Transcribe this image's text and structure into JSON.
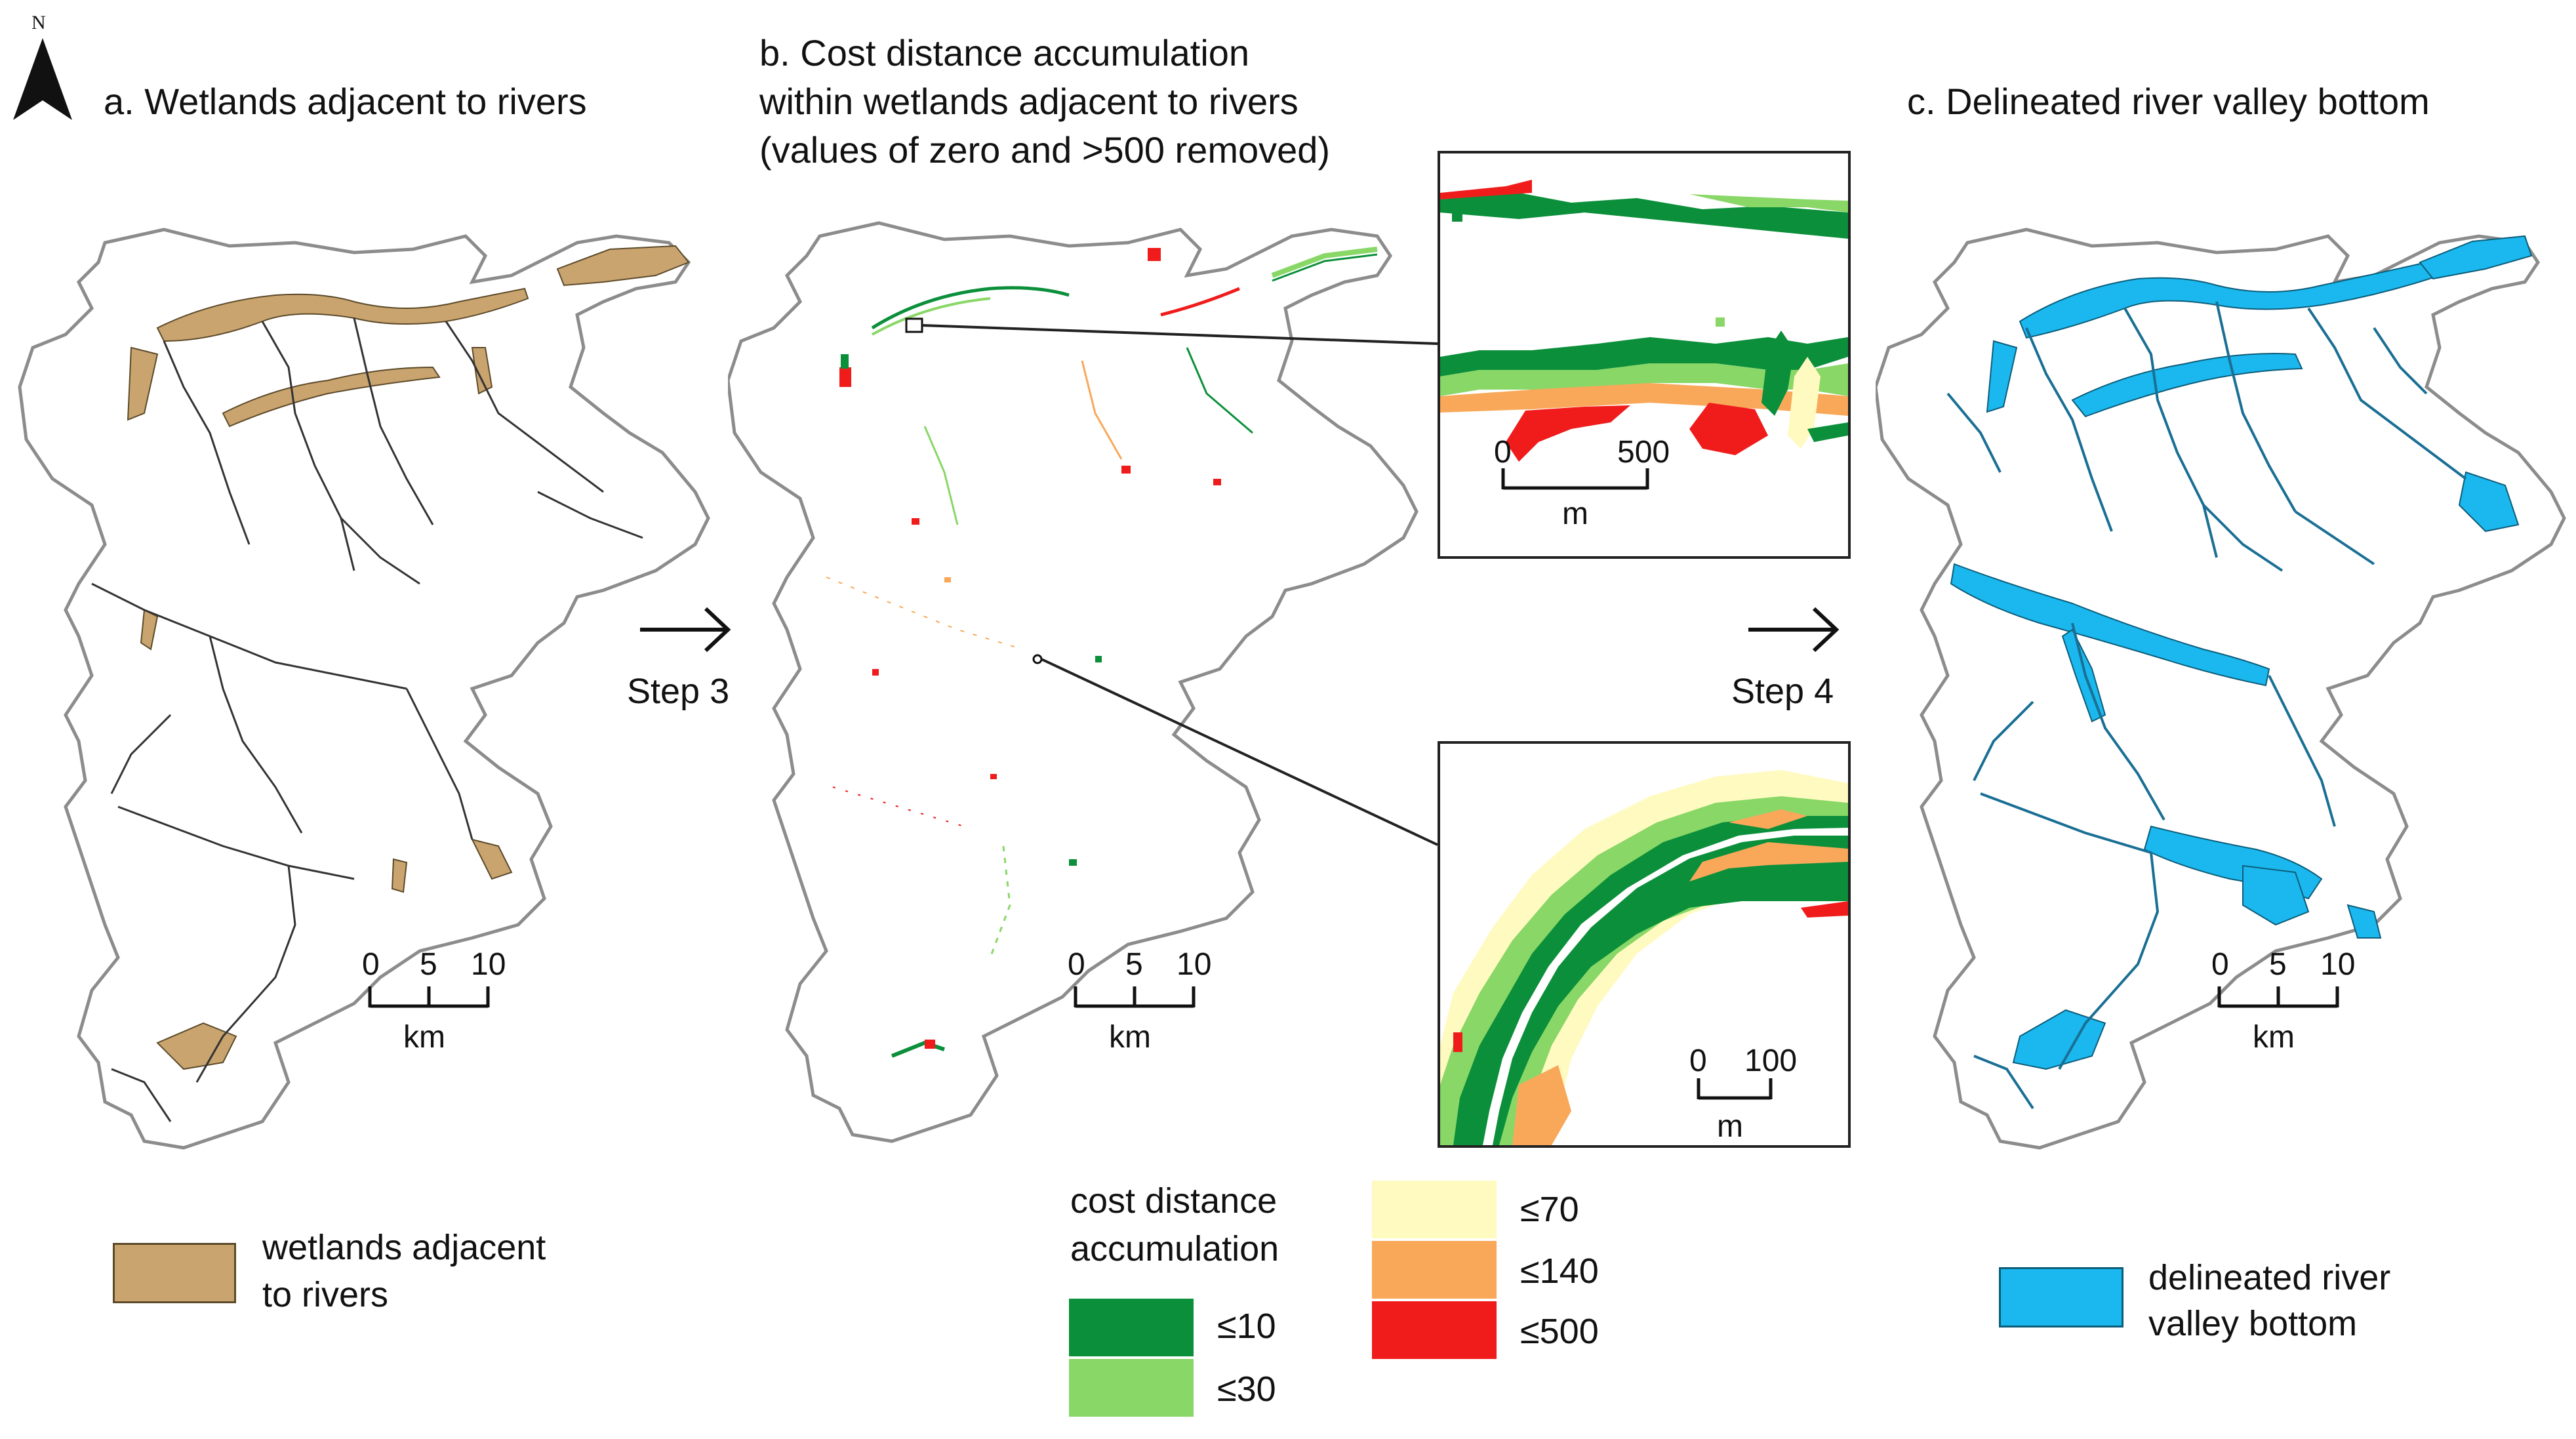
{
  "panels": {
    "a": {
      "title": "a. Wetlands adjacent to rivers",
      "legend": {
        "label_line1": "wetlands adjacent",
        "label_line2": "to rivers",
        "color": "#c9a46f"
      }
    },
    "b": {
      "title_line1": "b. Cost distance accumulation",
      "title_line2": "within wetlands adjacent to rivers",
      "title_line3": "(values of zero and >500 removed)"
    },
    "c": {
      "title": "c. Delineated river valley bottom",
      "legend": {
        "label_line1": "delineated river",
        "label_line2": "valley bottom",
        "color": "#1ab8ee"
      }
    }
  },
  "north_arrow": {
    "letter": "N"
  },
  "steps": {
    "step3": "Step 3",
    "step4": "Step 4",
    "arrow_glyph": "→"
  },
  "scalebars": {
    "main": {
      "ticks": [
        "0",
        "5",
        "10"
      ],
      "unit": "km"
    },
    "inset_top": {
      "ticks": [
        "0",
        "500"
      ],
      "unit": "m"
    },
    "inset_bottom": {
      "ticks": [
        "0",
        "100"
      ],
      "unit": "m"
    }
  },
  "cost_legend": {
    "title_line1": "cost distance",
    "title_line2": "accumulation",
    "classes": [
      {
        "label": "≤10",
        "color": "#0b8f3a"
      },
      {
        "label": "≤30",
        "color": "#88d767"
      },
      {
        "label": "≤70",
        "color": "#fffac0"
      },
      {
        "label": "≤140",
        "color": "#f9a85a"
      },
      {
        "label": "≤500",
        "color": "#f01c1c"
      }
    ]
  },
  "colors": {
    "outline": "#8c8c8c",
    "stream": "#333333",
    "inset_border": "#222222"
  }
}
